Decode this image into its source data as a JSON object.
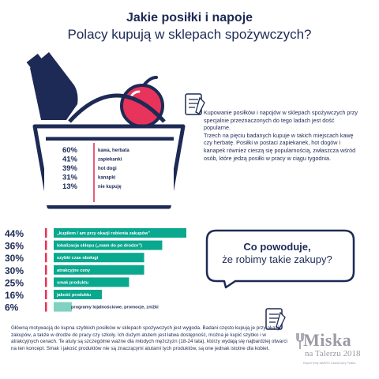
{
  "header": {
    "title": "Jakie posiłki i napoje",
    "subtitle": "Polacy kupują w sklepach spożywczych?"
  },
  "intro": {
    "para1": "Kupowanie posiłków i napojów w sklepach spożywczych przy specjalnie przeznaczonych do tego ladach jest dość popularne.",
    "para2": "Trzech na pięciu badanych kupuje w takich miejscach kawę czy herbatę. Posiłki w postaci zapiekanek, hot dogów i kanapek również cieszą się popularnością, zwłaszcza wśród osób, które jedzą posiłki w pracy w ciągu tygodnia."
  },
  "question": {
    "line1": "Co powoduje,",
    "line2": "że robimy takie zakupy?"
  },
  "footer": {
    "text": "Główną motywacją do kupna szybkich posiłków w sklepach spożywczych jest wygoda. Badani często kupują je przy okazji zakupów, a także w drodze do pracy czy szkoły. Ich dużym atutem jest łatwa dostępność, można je kupić szybko i w atrakcyjnych cenach. Te atuty są szczególnie ważne dla młodych mężczyzn (18-24 lata), którzy wydają się najbardziej otwarci na ten koncept. Smak i jakość produktów nie są znaczącymi atutami tych produktów, są one jednak istotne dla kobiet."
  },
  "logo": {
    "word": "Miska",
    "sub": "na Talerzu 2018",
    "small": "Raport firmy MAKRO Cash&Carry Polska"
  },
  "colors": {
    "navy": "#1d2a55",
    "teal": "#0aa88e",
    "teal_light": "#7fd1c1",
    "apple": "#e8335a",
    "grey": "#9b99a6"
  },
  "chart_data": [
    {
      "type": "bar",
      "orientation": "horizontal",
      "categories": [
        "kawa, herbata",
        "zapiekanki",
        "hot dogi",
        "kanapki",
        "nie kupuję"
      ],
      "values": [
        60,
        41,
        39,
        31,
        13
      ],
      "value_labels": [
        "60%",
        "41%",
        "39%",
        "31%",
        "13%"
      ],
      "unit": "%",
      "xlim": [
        0,
        100
      ]
    },
    {
      "type": "bar",
      "orientation": "horizontal",
      "categories": [
        "„kupiłem / am przy okazji robienia zakupów”",
        "lokalizacja sklepu („mam do po drodze”)",
        "szybki czas obsługi",
        "atrakcyjne ceny",
        "smak produktu",
        "jakość produktu",
        "programy lojalnościowe, promocje, zniżki"
      ],
      "values": [
        44,
        36,
        30,
        30,
        25,
        16,
        6
      ],
      "value_labels": [
        "44%",
        "36%",
        "30%",
        "30%",
        "25%",
        "16%",
        "6%"
      ],
      "unit": "%",
      "xlim": [
        0,
        44
      ]
    }
  ]
}
